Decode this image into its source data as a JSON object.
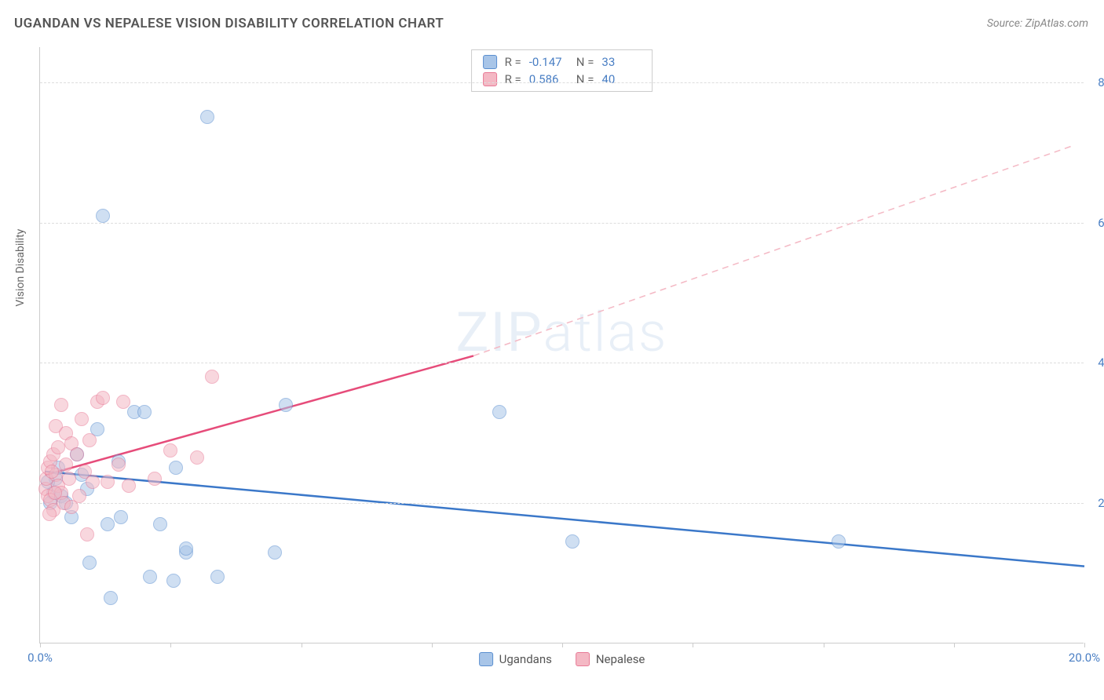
{
  "title": "UGANDAN VS NEPALESE VISION DISABILITY CORRELATION CHART",
  "source": "Source: ZipAtlas.com",
  "y_axis_label": "Vision Disability",
  "watermark_zip": "ZIP",
  "watermark_atlas": "atlas",
  "chart": {
    "type": "scatter",
    "xlim": [
      0,
      20
    ],
    "ylim": [
      0,
      8.5
    ],
    "x_ticks": [
      0,
      2.5,
      5,
      7.5,
      10,
      12.5,
      15,
      17.5,
      20
    ],
    "x_tick_labels": {
      "0": "0.0%",
      "20": "20.0%"
    },
    "y_gridlines": [
      2,
      4,
      6,
      8
    ],
    "y_tick_labels": {
      "2": "2.0%",
      "4": "4.0%",
      "6": "6.0%",
      "8": "8.0%"
    },
    "background_color": "#ffffff",
    "grid_color": "#dddddd",
    "axis_color": "#cccccc",
    "tick_label_color": "#4a7fc4",
    "point_radius": 9,
    "point_opacity": 0.55,
    "series": [
      {
        "name": "Ugandans",
        "color_fill": "#a8c5e8",
        "color_stroke": "#5b8fd0",
        "R": "-0.147",
        "N": "33",
        "trend": {
          "x1": 0.1,
          "y1": 2.45,
          "x2": 20,
          "y2": 1.1,
          "dash": false,
          "width": 2.5,
          "color": "#3b78c9"
        },
        "points": [
          [
            0.25,
            2.15
          ],
          [
            0.3,
            2.35
          ],
          [
            0.35,
            2.5
          ],
          [
            0.4,
            2.1
          ],
          [
            0.5,
            2.0
          ],
          [
            0.6,
            1.8
          ],
          [
            0.7,
            2.7
          ],
          [
            0.8,
            2.4
          ],
          [
            0.9,
            2.2
          ],
          [
            0.95,
            1.15
          ],
          [
            1.1,
            3.05
          ],
          [
            1.3,
            1.7
          ],
          [
            1.35,
            0.65
          ],
          [
            1.5,
            2.6
          ],
          [
            1.55,
            1.8
          ],
          [
            1.8,
            3.3
          ],
          [
            2.0,
            3.3
          ],
          [
            2.1,
            0.95
          ],
          [
            2.3,
            1.7
          ],
          [
            2.55,
            0.9
          ],
          [
            2.6,
            2.5
          ],
          [
            2.8,
            1.3
          ],
          [
            2.8,
            1.35
          ],
          [
            3.2,
            7.5
          ],
          [
            3.4,
            0.95
          ],
          [
            4.5,
            1.3
          ],
          [
            4.7,
            3.4
          ],
          [
            8.8,
            3.3
          ],
          [
            1.2,
            6.1
          ],
          [
            10.2,
            1.45
          ],
          [
            15.3,
            1.45
          ],
          [
            0.15,
            2.3
          ],
          [
            0.2,
            2.0
          ]
        ]
      },
      {
        "name": "Nepalese",
        "color_fill": "#f4b8c4",
        "color_stroke": "#e87a96",
        "R": "0.586",
        "N": "40",
        "trend_solid": {
          "x1": 0.1,
          "y1": 2.4,
          "x2": 8.3,
          "y2": 4.1,
          "dash": false,
          "width": 2.5,
          "color": "#e64c7a"
        },
        "trend_dash": {
          "x1": 8.3,
          "y1": 4.1,
          "x2": 19.8,
          "y2": 7.1,
          "dash": true,
          "width": 1.5,
          "color": "#f4b8c4"
        },
        "points": [
          [
            0.1,
            2.2
          ],
          [
            0.12,
            2.35
          ],
          [
            0.15,
            2.5
          ],
          [
            0.15,
            2.1
          ],
          [
            0.2,
            2.05
          ],
          [
            0.2,
            2.6
          ],
          [
            0.25,
            2.7
          ],
          [
            0.25,
            1.9
          ],
          [
            0.3,
            3.1
          ],
          [
            0.3,
            2.4
          ],
          [
            0.35,
            2.8
          ],
          [
            0.35,
            2.25
          ],
          [
            0.4,
            3.4
          ],
          [
            0.4,
            2.15
          ],
          [
            0.45,
            2.0
          ],
          [
            0.5,
            3.0
          ],
          [
            0.5,
            2.55
          ],
          [
            0.55,
            2.35
          ],
          [
            0.6,
            2.85
          ],
          [
            0.6,
            1.95
          ],
          [
            0.7,
            2.7
          ],
          [
            0.75,
            2.1
          ],
          [
            0.8,
            3.2
          ],
          [
            0.85,
            2.45
          ],
          [
            0.9,
            1.55
          ],
          [
            0.95,
            2.9
          ],
          [
            1.0,
            2.3
          ],
          [
            1.1,
            3.45
          ],
          [
            1.2,
            3.5
          ],
          [
            1.3,
            2.3
          ],
          [
            1.5,
            2.55
          ],
          [
            1.6,
            3.45
          ],
          [
            1.7,
            2.25
          ],
          [
            2.2,
            2.35
          ],
          [
            2.5,
            2.75
          ],
          [
            3.0,
            2.65
          ],
          [
            3.3,
            3.8
          ],
          [
            0.18,
            1.85
          ],
          [
            0.22,
            2.45
          ],
          [
            0.28,
            2.15
          ]
        ]
      }
    ],
    "legend_labels": {
      "ugandans": "Ugandans",
      "nepalese": "Nepalese"
    },
    "stats_labels": {
      "R": "R =",
      "N": "N ="
    }
  }
}
